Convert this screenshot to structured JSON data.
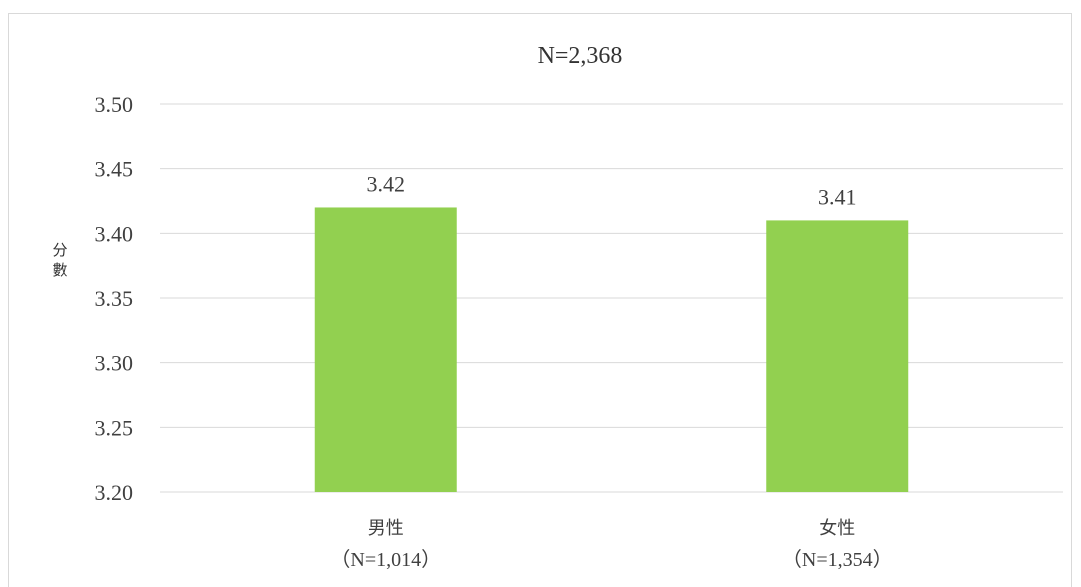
{
  "chart_data": {
    "type": "bar",
    "title": "N=2,368",
    "xlabel": "",
    "ylabel": "分數",
    "ylim": [
      3.2,
      3.5
    ],
    "yticks": [
      "3.50",
      "3.45",
      "3.40",
      "3.35",
      "3.30",
      "3.25",
      "3.20"
    ],
    "ytick_values": [
      3.5,
      3.45,
      3.4,
      3.35,
      3.3,
      3.25,
      3.2
    ],
    "categories": [
      {
        "line1": "男性",
        "line2": "（N=1,014）"
      },
      {
        "line1": "女性",
        "line2": "（N=1,354）"
      }
    ],
    "values": [
      3.42,
      3.41
    ],
    "value_labels": [
      "3.42",
      "3.41"
    ],
    "bar_color": "#92d050",
    "grid": true,
    "legend": "none"
  }
}
